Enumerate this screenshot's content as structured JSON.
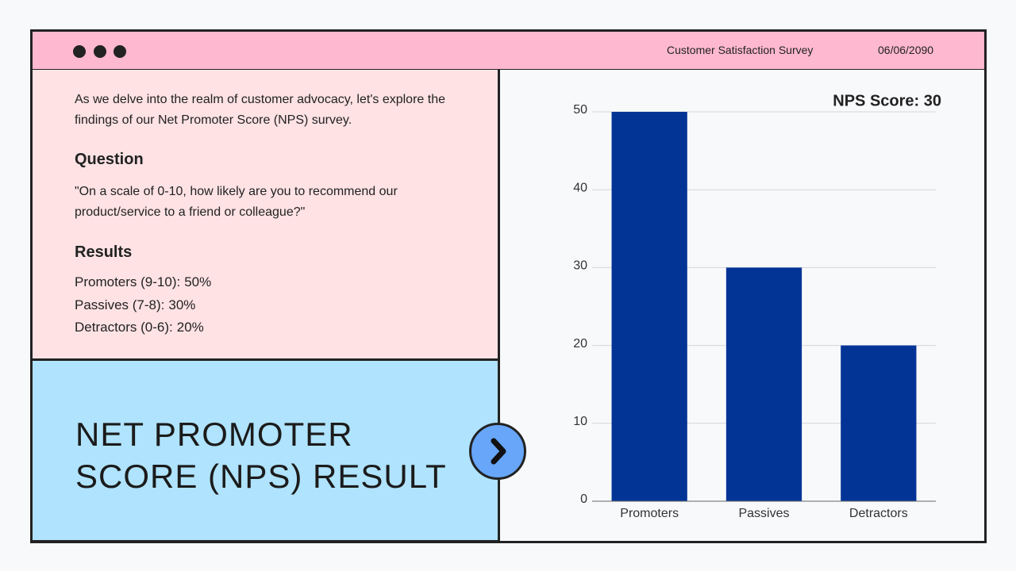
{
  "header": {
    "title": "Customer Satisfaction Survey",
    "date": "06/06/2090"
  },
  "intro": "As we delve into the realm of customer advocacy, let's explore the findings of our Net Promoter Score (NPS) survey.",
  "question": {
    "heading": "Question",
    "text": "\"On a scale of 0-10, how likely are you to recommend our product/service to a friend or colleague?\""
  },
  "results": {
    "heading": "Results",
    "lines": [
      {
        "label": "Promoters (9-10):",
        "value": "50%"
      },
      {
        "label": "Passives (7-8):",
        "value": "30%"
      },
      {
        "label": "Detractors (0-6):",
        "value": "20%"
      }
    ]
  },
  "title_lines": [
    "NET PROMOTER",
    "SCORE (NPS) RESULT"
  ],
  "chart_data": {
    "type": "bar",
    "annotation": "NPS Score: 30",
    "categories": [
      "Promoters",
      "Passives",
      "Detractors"
    ],
    "values": [
      50,
      30,
      20
    ],
    "color": "#023496",
    "ylim": [
      0,
      50
    ],
    "yticks": [
      0,
      10,
      20,
      30,
      40,
      50
    ],
    "grid": true
  }
}
